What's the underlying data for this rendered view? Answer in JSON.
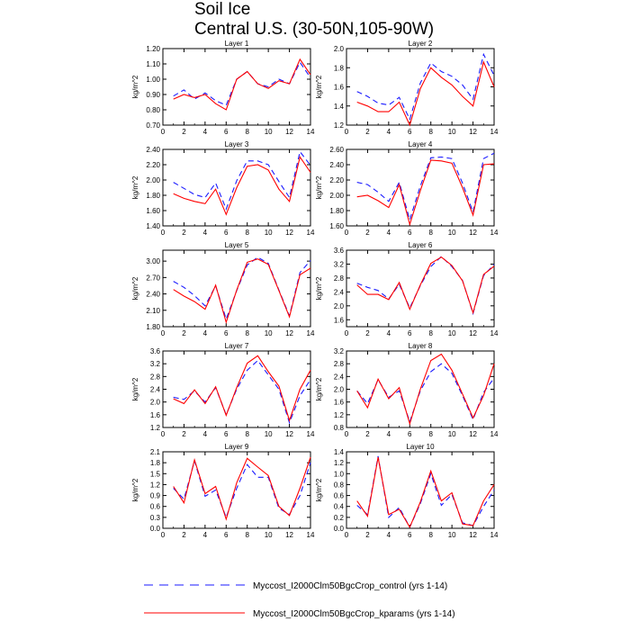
{
  "figure": {
    "title_lines": [
      "Soil Ice",
      "Central U.S. (30-50N,105-90W)"
    ]
  },
  "legend": {
    "entries": [
      {
        "label": "Myccost_I2000Clm50BgcCrop_control (yrs 1-14)",
        "color": "#1a1aff",
        "style": "dashed"
      },
      {
        "label": "Myccost_I2000Clm50BgcCrop_kparams (yrs 1-14)",
        "color": "#ff0000",
        "style": "solid"
      }
    ]
  },
  "colors": {
    "control": "#1a1aff",
    "kparams": "#ff0000"
  },
  "chart_data": [
    {
      "type": "line",
      "title": "Layer 1",
      "ylabel": "kg/m^2",
      "xlim": [
        0,
        14
      ],
      "ylim": [
        0.7,
        1.2
      ],
      "xticks": [
        0,
        2,
        4,
        6,
        8,
        10,
        12,
        14
      ],
      "yticks": [
        "0.70",
        "0.80",
        "0.90",
        "1.00",
        "1.10",
        "1.20"
      ],
      "x": [
        1,
        2,
        3,
        4,
        5,
        6,
        7,
        8,
        9,
        10,
        11,
        12,
        13,
        14
      ],
      "series": [
        {
          "name": "Myccost_I2000Clm50BgcCrop_control (yrs 1-14)",
          "values": [
            0.89,
            0.93,
            0.87,
            0.91,
            0.86,
            0.83,
            1.0,
            1.05,
            0.97,
            0.95,
            1.0,
            0.97,
            1.11,
            1.01
          ]
        },
        {
          "name": "Myccost_I2000Clm50BgcCrop_kparams (yrs 1-14)",
          "values": [
            0.87,
            0.9,
            0.88,
            0.9,
            0.84,
            0.8,
            1.0,
            1.05,
            0.97,
            0.94,
            0.99,
            0.97,
            1.13,
            1.03
          ]
        }
      ]
    },
    {
      "type": "line",
      "title": "Layer 2",
      "ylabel": "kg/m^2",
      "xlim": [
        0,
        14
      ],
      "ylim": [
        1.2,
        2.0
      ],
      "xticks": [
        0,
        2,
        4,
        6,
        8,
        10,
        12,
        14
      ],
      "yticks": [
        "1.2",
        "1.4",
        "1.6",
        "1.8",
        "2.0"
      ],
      "x": [
        1,
        2,
        3,
        4,
        5,
        6,
        7,
        8,
        9,
        10,
        11,
        12,
        13,
        14
      ],
      "series": [
        {
          "name": "Myccost_I2000Clm50BgcCrop_control (yrs 1-14)",
          "values": [
            1.55,
            1.5,
            1.43,
            1.41,
            1.49,
            1.26,
            1.64,
            1.85,
            1.76,
            1.71,
            1.62,
            1.47,
            1.94,
            1.72
          ]
        },
        {
          "name": "Myccost_I2000Clm50BgcCrop_kparams (yrs 1-14)",
          "values": [
            1.44,
            1.4,
            1.34,
            1.34,
            1.44,
            1.2,
            1.58,
            1.8,
            1.7,
            1.62,
            1.5,
            1.4,
            1.86,
            1.6
          ]
        }
      ]
    },
    {
      "type": "line",
      "title": "Layer 3",
      "ylabel": "kg/m^2",
      "xlim": [
        0,
        14
      ],
      "ylim": [
        1.4,
        2.4
      ],
      "xticks": [
        0,
        2,
        4,
        6,
        8,
        10,
        12,
        14
      ],
      "yticks": [
        "1.40",
        "1.60",
        "1.80",
        "2.00",
        "2.20",
        "2.40"
      ],
      "x": [
        1,
        2,
        3,
        4,
        5,
        6,
        7,
        8,
        9,
        10,
        11,
        12,
        13,
        14
      ],
      "series": [
        {
          "name": "Myccost_I2000Clm50BgcCrop_control (yrs 1-14)",
          "values": [
            1.97,
            1.89,
            1.81,
            1.77,
            1.96,
            1.62,
            1.99,
            2.25,
            2.25,
            2.2,
            1.98,
            1.77,
            2.37,
            2.19
          ]
        },
        {
          "name": "Myccost_I2000Clm50BgcCrop_kparams (yrs 1-14)",
          "values": [
            1.82,
            1.76,
            1.72,
            1.69,
            1.88,
            1.55,
            1.9,
            2.18,
            2.2,
            2.13,
            1.88,
            1.72,
            2.3,
            2.1
          ]
        }
      ]
    },
    {
      "type": "line",
      "title": "Layer 4",
      "ylabel": "kg/m^2",
      "xlim": [
        0,
        14
      ],
      "ylim": [
        1.6,
        2.6
      ],
      "xticks": [
        0,
        2,
        4,
        6,
        8,
        10,
        12,
        14
      ],
      "yticks": [
        "1.60",
        "1.80",
        "2.00",
        "2.20",
        "2.40",
        "2.60"
      ],
      "x": [
        1,
        2,
        3,
        4,
        5,
        6,
        7,
        8,
        9,
        10,
        11,
        12,
        13,
        14
      ],
      "series": [
        {
          "name": "Myccost_I2000Clm50BgcCrop_control (yrs 1-14)",
          "values": [
            2.17,
            2.14,
            2.04,
            1.92,
            2.17,
            1.68,
            2.12,
            2.49,
            2.5,
            2.48,
            2.16,
            1.78,
            2.48,
            2.55
          ]
        },
        {
          "name": "Myccost_I2000Clm50BgcCrop_kparams (yrs 1-14)",
          "values": [
            1.98,
            2.0,
            1.93,
            1.84,
            2.14,
            1.62,
            2.06,
            2.46,
            2.45,
            2.42,
            2.1,
            1.74,
            2.4,
            2.41
          ]
        }
      ]
    },
    {
      "type": "line",
      "title": "Layer 5",
      "ylabel": "kg/m^2",
      "xlim": [
        0,
        14
      ],
      "ylim": [
        1.8,
        3.2
      ],
      "xticks": [
        0,
        2,
        4,
        6,
        8,
        10,
        12,
        14
      ],
      "yticks": [
        "1.80",
        "2.10",
        "2.40",
        "2.70",
        "3.00"
      ],
      "x": [
        1,
        2,
        3,
        4,
        5,
        6,
        7,
        8,
        9,
        10,
        11,
        12,
        13,
        14
      ],
      "series": [
        {
          "name": "Myccost_I2000Clm50BgcCrop_control (yrs 1-14)",
          "values": [
            2.63,
            2.52,
            2.37,
            2.18,
            2.55,
            1.94,
            2.46,
            2.93,
            3.07,
            2.96,
            2.47,
            2.0,
            2.79,
            3.01
          ]
        },
        {
          "name": "Myccost_I2000Clm50BgcCrop_kparams (yrs 1-14)",
          "values": [
            2.48,
            2.36,
            2.26,
            2.12,
            2.56,
            1.88,
            2.47,
            2.98,
            3.04,
            2.94,
            2.46,
            1.98,
            2.75,
            2.87
          ]
        }
      ]
    },
    {
      "type": "line",
      "title": "Layer 6",
      "ylabel": "kg/m^2",
      "xlim": [
        0,
        14
      ],
      "ylim": [
        1.4,
        3.6
      ],
      "xticks": [
        0,
        2,
        4,
        6,
        8,
        10,
        12,
        14
      ],
      "yticks": [
        "1.6",
        "2.0",
        "2.4",
        "2.8",
        "3.2",
        "3.6"
      ],
      "x": [
        1,
        2,
        3,
        4,
        5,
        6,
        7,
        8,
        9,
        10,
        11,
        12,
        13,
        14
      ],
      "series": [
        {
          "name": "Myccost_I2000Clm50BgcCrop_control (yrs 1-14)",
          "values": [
            2.65,
            2.53,
            2.44,
            2.2,
            2.62,
            1.94,
            2.58,
            3.13,
            3.42,
            3.13,
            2.73,
            1.78,
            2.87,
            3.19
          ]
        },
        {
          "name": "Myccost_I2000Clm50BgcCrop_kparams (yrs 1-14)",
          "values": [
            2.6,
            2.33,
            2.33,
            2.18,
            2.67,
            1.9,
            2.6,
            3.22,
            3.4,
            3.16,
            2.72,
            1.8,
            2.9,
            3.14
          ]
        }
      ]
    },
    {
      "type": "line",
      "title": "Layer 7",
      "ylabel": "kg/m^2",
      "xlim": [
        0,
        14
      ],
      "ylim": [
        1.2,
        3.6
      ],
      "xticks": [
        0,
        2,
        4,
        6,
        8,
        10,
        12,
        14
      ],
      "yticks": [
        "1.2",
        "1.6",
        "2.0",
        "2.4",
        "2.8",
        "3.2",
        "3.6"
      ],
      "x": [
        1,
        2,
        3,
        4,
        5,
        6,
        7,
        8,
        9,
        10,
        11,
        12,
        13,
        14
      ],
      "series": [
        {
          "name": "Myccost_I2000Clm50BgcCrop_control (yrs 1-14)",
          "values": [
            2.15,
            2.08,
            2.35,
            2.0,
            2.45,
            1.6,
            2.4,
            3.0,
            3.3,
            2.85,
            2.4,
            1.35,
            2.2,
            2.7
          ]
        },
        {
          "name": "Myccost_I2000Clm50BgcCrop_kparams (yrs 1-14)",
          "values": [
            2.1,
            1.95,
            2.38,
            1.95,
            2.48,
            1.58,
            2.45,
            3.22,
            3.45,
            2.95,
            2.5,
            1.42,
            2.4,
            3.0
          ]
        }
      ]
    },
    {
      "type": "line",
      "title": "Layer 8",
      "ylabel": "kg/m^2",
      "xlim": [
        0,
        14
      ],
      "ylim": [
        0.8,
        3.2
      ],
      "xticks": [
        0,
        2,
        4,
        6,
        8,
        10,
        12,
        14
      ],
      "yticks": [
        "0.8",
        "1.2",
        "1.6",
        "2.0",
        "2.4",
        "2.8",
        "3.2"
      ],
      "x": [
        1,
        2,
        3,
        4,
        5,
        6,
        7,
        8,
        9,
        10,
        11,
        12,
        13,
        14
      ],
      "series": [
        {
          "name": "Myccost_I2000Clm50BgcCrop_control (yrs 1-14)",
          "values": [
            1.95,
            1.55,
            2.3,
            1.75,
            1.95,
            0.98,
            1.95,
            2.55,
            2.8,
            2.5,
            1.8,
            1.05,
            1.9,
            2.35
          ]
        },
        {
          "name": "Myccost_I2000Clm50BgcCrop_kparams (yrs 1-14)",
          "values": [
            1.95,
            1.42,
            2.32,
            1.7,
            2.05,
            0.92,
            2.0,
            2.9,
            3.1,
            2.6,
            1.85,
            1.1,
            1.8,
            2.8
          ]
        }
      ]
    },
    {
      "type": "line",
      "title": "Layer 9",
      "ylabel": "kg/m^2",
      "xlim": [
        0,
        14
      ],
      "ylim": [
        0.0,
        2.1
      ],
      "xticks": [
        0,
        2,
        4,
        6,
        8,
        10,
        12,
        14
      ],
      "yticks": [
        "0.0",
        "0.3",
        "0.6",
        "0.9",
        "1.2",
        "1.5",
        "1.8",
        "2.1"
      ],
      "x": [
        1,
        2,
        3,
        4,
        5,
        6,
        7,
        8,
        9,
        10,
        11,
        12,
        13,
        14
      ],
      "series": [
        {
          "name": "Myccost_I2000Clm50BgcCrop_control (yrs 1-14)",
          "values": [
            1.1,
            0.8,
            1.85,
            0.88,
            1.05,
            0.3,
            1.1,
            1.75,
            1.4,
            1.4,
            0.55,
            0.38,
            0.9,
            1.8
          ]
        },
        {
          "name": "Myccost_I2000Clm50BgcCrop_kparams (yrs 1-14)",
          "values": [
            1.15,
            0.7,
            1.88,
            0.95,
            1.15,
            0.25,
            1.25,
            1.92,
            1.68,
            1.45,
            0.6,
            0.35,
            1.1,
            1.95
          ]
        }
      ]
    },
    {
      "type": "line",
      "title": "Layer 10",
      "ylabel": "kg/m^2",
      "xlim": [
        0,
        14
      ],
      "ylim": [
        0.0,
        1.4
      ],
      "xticks": [
        0,
        2,
        4,
        6,
        8,
        10,
        12,
        14
      ],
      "yticks": [
        "0.0",
        "0.2",
        "0.4",
        "0.6",
        "0.8",
        "1.0",
        "1.2",
        "1.4"
      ],
      "x": [
        1,
        2,
        3,
        4,
        5,
        6,
        7,
        8,
        9,
        10,
        11,
        12,
        13,
        14
      ],
      "series": [
        {
          "name": "Myccost_I2000Clm50BgcCrop_control (yrs 1-14)",
          "values": [
            0.42,
            0.25,
            1.32,
            0.2,
            0.38,
            0.02,
            0.45,
            1.0,
            0.42,
            0.62,
            0.1,
            0.05,
            0.4,
            0.7
          ]
        },
        {
          "name": "Myccost_I2000Clm50BgcCrop_kparams (yrs 1-14)",
          "values": [
            0.5,
            0.22,
            1.3,
            0.25,
            0.35,
            0.02,
            0.48,
            1.05,
            0.5,
            0.65,
            0.08,
            0.05,
            0.5,
            0.8
          ]
        }
      ]
    }
  ]
}
